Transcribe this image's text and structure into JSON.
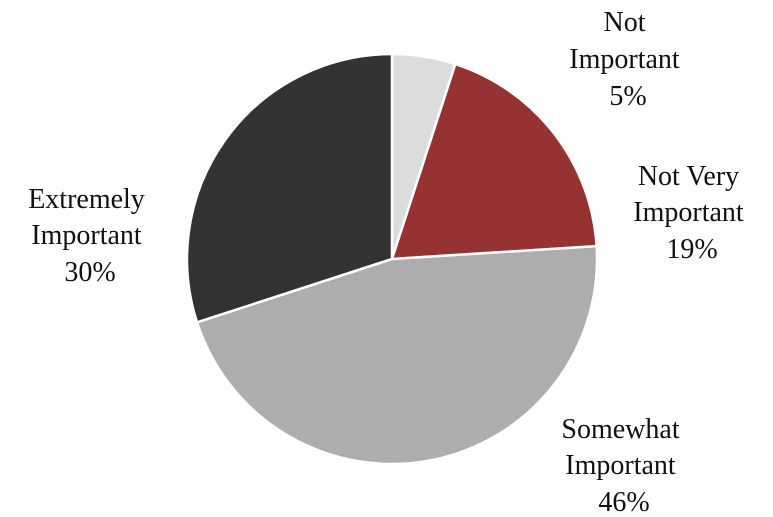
{
  "chart_data": {
    "type": "pie",
    "slices": [
      {
        "label_lines": [
          "Not",
          "Important"
        ],
        "value": 5,
        "value_label": "5%",
        "color": "#dcdcdc"
      },
      {
        "label_lines": [
          "Not Very",
          "Important"
        ],
        "value": 19,
        "value_label": "19%",
        "color": "#963232"
      },
      {
        "label_lines": [
          "Somewhat",
          "Important"
        ],
        "value": 46,
        "value_label": "46%",
        "color": "#adadad"
      },
      {
        "label_lines": [
          "Extremely",
          "Important"
        ],
        "value": 30,
        "value_label": "30%",
        "color": "#333333"
      }
    ],
    "start_angle_deg": 0,
    "direction": "clockwise",
    "legend": "none"
  }
}
